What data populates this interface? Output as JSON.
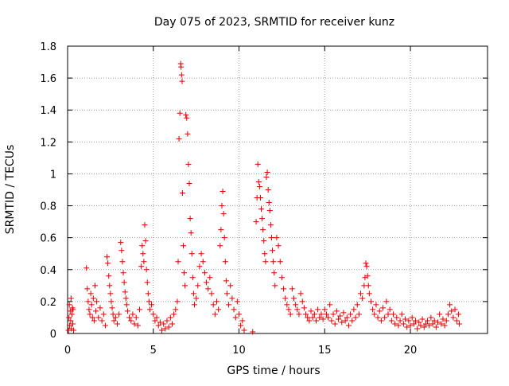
{
  "chart_data": {
    "type": "scatter",
    "title": "Day 075 of 2023, SRMTID for receiver kunz",
    "xlabel": "GPS time / hours",
    "ylabel": "SRMTID / TECUs",
    "xlim": [
      0,
      24.5
    ],
    "ylim": [
      0,
      1.8
    ],
    "xticks": [
      0,
      5,
      10,
      15,
      20
    ],
    "yticks": [
      0,
      0.2,
      0.4,
      0.6,
      0.8,
      1,
      1.2,
      1.4,
      1.6,
      1.8
    ],
    "xtick_labels": [
      "0",
      "5",
      "10",
      "15",
      "20"
    ],
    "ytick_labels": [
      "0",
      "0.2",
      "0.4",
      "0.6",
      "0.8",
      "1",
      "1.2",
      "1.4",
      "1.6",
      "1.8"
    ],
    "grid": true,
    "marker": "+",
    "color": "#e00000",
    "series": [
      {
        "name": "SRMTID",
        "points": [
          [
            0.05,
            0.02
          ],
          [
            0.08,
            0.1
          ],
          [
            0.1,
            0.18
          ],
          [
            0.12,
            0.05
          ],
          [
            0.15,
            0.14
          ],
          [
            0.18,
            0.08
          ],
          [
            0.2,
            0.22
          ],
          [
            0.22,
            0.03
          ],
          [
            0.25,
            0.12
          ],
          [
            0.28,
            0.16
          ],
          [
            0.3,
            0.06
          ],
          [
            0.32,
            0.15
          ],
          [
            0.35,
            0.02
          ],
          [
            1.1,
            0.41
          ],
          [
            1.15,
            0.28
          ],
          [
            1.2,
            0.2
          ],
          [
            1.25,
            0.15
          ],
          [
            1.3,
            0.12
          ],
          [
            1.35,
            0.25
          ],
          [
            1.4,
            0.18
          ],
          [
            1.45,
            0.1
          ],
          [
            1.5,
            0.22
          ],
          [
            1.55,
            0.08
          ],
          [
            1.6,
            0.3
          ],
          [
            1.65,
            0.14
          ],
          [
            1.7,
            0.2
          ],
          [
            1.8,
            0.1
          ],
          [
            1.9,
            0.16
          ],
          [
            2.0,
            0.08
          ],
          [
            2.1,
            0.12
          ],
          [
            2.2,
            0.05
          ],
          [
            2.3,
            0.48
          ],
          [
            2.35,
            0.44
          ],
          [
            2.4,
            0.36
          ],
          [
            2.45,
            0.3
          ],
          [
            2.5,
            0.25
          ],
          [
            2.55,
            0.2
          ],
          [
            2.6,
            0.16
          ],
          [
            2.65,
            0.12
          ],
          [
            2.7,
            0.08
          ],
          [
            2.8,
            0.1
          ],
          [
            2.9,
            0.06
          ],
          [
            3.0,
            0.12
          ],
          [
            3.1,
            0.57
          ],
          [
            3.15,
            0.52
          ],
          [
            3.2,
            0.45
          ],
          [
            3.25,
            0.38
          ],
          [
            3.3,
            0.32
          ],
          [
            3.35,
            0.26
          ],
          [
            3.4,
            0.22
          ],
          [
            3.45,
            0.18
          ],
          [
            3.5,
            0.14
          ],
          [
            3.6,
            0.1
          ],
          [
            3.7,
            0.08
          ],
          [
            3.8,
            0.12
          ],
          [
            3.9,
            0.06
          ],
          [
            4.0,
            0.1
          ],
          [
            4.1,
            0.05
          ],
          [
            4.2,
            0.15
          ],
          [
            4.3,
            0.42
          ],
          [
            4.35,
            0.55
          ],
          [
            4.4,
            0.5
          ],
          [
            4.45,
            0.45
          ],
          [
            4.5,
            0.68
          ],
          [
            4.55,
            0.58
          ],
          [
            4.6,
            0.4
          ],
          [
            4.65,
            0.32
          ],
          [
            4.7,
            0.25
          ],
          [
            4.75,
            0.2
          ],
          [
            4.8,
            0.15
          ],
          [
            4.9,
            0.18
          ],
          [
            5.0,
            0.12
          ],
          [
            5.1,
            0.08
          ],
          [
            5.2,
            0.1
          ],
          [
            5.3,
            0.05
          ],
          [
            5.4,
            0.07
          ],
          [
            5.5,
            0.02
          ],
          [
            5.6,
            0.06
          ],
          [
            5.7,
            0.03
          ],
          [
            5.8,
            0.08
          ],
          [
            5.9,
            0.04
          ],
          [
            6.0,
            0.1
          ],
          [
            6.1,
            0.06
          ],
          [
            6.2,
            0.12
          ],
          [
            6.3,
            0.15
          ],
          [
            6.4,
            0.2
          ],
          [
            6.45,
            0.45
          ],
          [
            6.5,
            1.22
          ],
          [
            6.55,
            1.38
          ],
          [
            6.6,
            1.69
          ],
          [
            6.62,
            1.67
          ],
          [
            6.65,
            1.62
          ],
          [
            6.68,
            1.58
          ],
          [
            6.7,
            0.88
          ],
          [
            6.75,
            0.55
          ],
          [
            6.8,
            0.38
          ],
          [
            6.85,
            0.3
          ],
          [
            6.9,
            1.37
          ],
          [
            6.95,
            1.35
          ],
          [
            7.0,
            1.25
          ],
          [
            7.05,
            1.06
          ],
          [
            7.1,
            0.94
          ],
          [
            7.15,
            0.72
          ],
          [
            7.2,
            0.63
          ],
          [
            7.25,
            0.5
          ],
          [
            7.3,
            0.35
          ],
          [
            7.35,
            0.25
          ],
          [
            7.4,
            0.18
          ],
          [
            7.5,
            0.22
          ],
          [
            7.6,
            0.3
          ],
          [
            7.7,
            0.42
          ],
          [
            7.8,
            0.5
          ],
          [
            7.9,
            0.45
          ],
          [
            8.0,
            0.38
          ],
          [
            8.1,
            0.32
          ],
          [
            8.2,
            0.28
          ],
          [
            8.3,
            0.35
          ],
          [
            8.4,
            0.25
          ],
          [
            8.5,
            0.18
          ],
          [
            8.6,
            0.12
          ],
          [
            8.7,
            0.2
          ],
          [
            8.8,
            0.15
          ],
          [
            8.9,
            0.55
          ],
          [
            8.95,
            0.65
          ],
          [
            9.0,
            0.8
          ],
          [
            9.05,
            0.89
          ],
          [
            9.1,
            0.75
          ],
          [
            9.15,
            0.6
          ],
          [
            9.2,
            0.45
          ],
          [
            9.25,
            0.33
          ],
          [
            9.3,
            0.25
          ],
          [
            9.4,
            0.18
          ],
          [
            9.5,
            0.3
          ],
          [
            9.6,
            0.22
          ],
          [
            9.7,
            0.15
          ],
          [
            9.8,
            0.1
          ],
          [
            9.9,
            0.2
          ],
          [
            10.0,
            0.12
          ],
          [
            10.1,
            0.05
          ],
          [
            10.2,
            0.08
          ],
          [
            10.3,
            0.02
          ],
          [
            10.8,
            0.01
          ],
          [
            11.0,
            0.7
          ],
          [
            11.05,
            0.85
          ],
          [
            11.1,
            1.06
          ],
          [
            11.15,
            0.95
          ],
          [
            11.2,
            0.92
          ],
          [
            11.25,
            0.85
          ],
          [
            11.3,
            0.78
          ],
          [
            11.35,
            0.72
          ],
          [
            11.4,
            0.65
          ],
          [
            11.45,
            0.58
          ],
          [
            11.5,
            0.5
          ],
          [
            11.55,
            0.45
          ],
          [
            11.6,
            0.98
          ],
          [
            11.65,
            1.01
          ],
          [
            11.7,
            0.9
          ],
          [
            11.75,
            0.82
          ],
          [
            11.8,
            0.77
          ],
          [
            11.85,
            0.68
          ],
          [
            11.9,
            0.6
          ],
          [
            11.95,
            0.52
          ],
          [
            12.0,
            0.45
          ],
          [
            12.05,
            0.38
          ],
          [
            12.1,
            0.3
          ],
          [
            12.2,
            0.6
          ],
          [
            12.3,
            0.55
          ],
          [
            12.4,
            0.45
          ],
          [
            12.5,
            0.35
          ],
          [
            12.6,
            0.28
          ],
          [
            12.7,
            0.22
          ],
          [
            12.8,
            0.18
          ],
          [
            12.9,
            0.15
          ],
          [
            13.0,
            0.12
          ],
          [
            13.1,
            0.28
          ],
          [
            13.2,
            0.22
          ],
          [
            13.3,
            0.18
          ],
          [
            13.4,
            0.15
          ],
          [
            13.5,
            0.12
          ],
          [
            13.6,
            0.25
          ],
          [
            13.7,
            0.2
          ],
          [
            13.8,
            0.16
          ],
          [
            13.9,
            0.12
          ],
          [
            14.0,
            0.1
          ],
          [
            14.1,
            0.08
          ],
          [
            14.2,
            0.14
          ],
          [
            14.3,
            0.1
          ],
          [
            14.4,
            0.12
          ],
          [
            14.5,
            0.08
          ],
          [
            14.6,
            0.15
          ],
          [
            14.7,
            0.1
          ],
          [
            14.8,
            0.12
          ],
          [
            14.9,
            0.09
          ],
          [
            15.0,
            0.15
          ],
          [
            15.1,
            0.12
          ],
          [
            15.2,
            0.1
          ],
          [
            15.3,
            0.18
          ],
          [
            15.4,
            0.08
          ],
          [
            15.5,
            0.12
          ],
          [
            15.6,
            0.06
          ],
          [
            15.7,
            0.14
          ],
          [
            15.8,
            0.09
          ],
          [
            15.9,
            0.11
          ],
          [
            16.0,
            0.07
          ],
          [
            16.1,
            0.13
          ],
          [
            16.2,
            0.08
          ],
          [
            16.3,
            0.1
          ],
          [
            16.4,
            0.05
          ],
          [
            16.5,
            0.12
          ],
          [
            16.6,
            0.08
          ],
          [
            16.7,
            0.15
          ],
          [
            16.8,
            0.1
          ],
          [
            16.9,
            0.18
          ],
          [
            17.0,
            0.12
          ],
          [
            17.1,
            0.25
          ],
          [
            17.2,
            0.22
          ],
          [
            17.3,
            0.3
          ],
          [
            17.35,
            0.35
          ],
          [
            17.4,
            0.44
          ],
          [
            17.45,
            0.42
          ],
          [
            17.5,
            0.36
          ],
          [
            17.55,
            0.3
          ],
          [
            17.6,
            0.25
          ],
          [
            17.7,
            0.2
          ],
          [
            17.8,
            0.15
          ],
          [
            17.9,
            0.12
          ],
          [
            18.0,
            0.18
          ],
          [
            18.1,
            0.1
          ],
          [
            18.2,
            0.14
          ],
          [
            18.3,
            0.08
          ],
          [
            18.4,
            0.16
          ],
          [
            18.5,
            0.1
          ],
          [
            18.6,
            0.2
          ],
          [
            18.7,
            0.12
          ],
          [
            18.8,
            0.15
          ],
          [
            18.9,
            0.08
          ],
          [
            19.0,
            0.12
          ],
          [
            19.1,
            0.06
          ],
          [
            19.2,
            0.1
          ],
          [
            19.3,
            0.05
          ],
          [
            19.4,
            0.08
          ],
          [
            19.5,
            0.12
          ],
          [
            19.6,
            0.06
          ],
          [
            19.7,
            0.09
          ],
          [
            19.8,
            0.04
          ],
          [
            19.9,
            0.08
          ],
          [
            20.0,
            0.05
          ],
          [
            20.1,
            0.1
          ],
          [
            20.2,
            0.06
          ],
          [
            20.3,
            0.08
          ],
          [
            20.4,
            0.03
          ],
          [
            20.5,
            0.07
          ],
          [
            20.6,
            0.05
          ],
          [
            20.7,
            0.09
          ],
          [
            20.8,
            0.04
          ],
          [
            20.9,
            0.06
          ],
          [
            21.0,
            0.08
          ],
          [
            21.1,
            0.05
          ],
          [
            21.2,
            0.1
          ],
          [
            21.3,
            0.06
          ],
          [
            21.4,
            0.08
          ],
          [
            21.5,
            0.04
          ],
          [
            21.6,
            0.07
          ],
          [
            21.7,
            0.12
          ],
          [
            21.8,
            0.06
          ],
          [
            21.9,
            0.09
          ],
          [
            22.0,
            0.05
          ],
          [
            22.1,
            0.08
          ],
          [
            22.2,
            0.12
          ],
          [
            22.3,
            0.18
          ],
          [
            22.4,
            0.14
          ],
          [
            22.5,
            0.1
          ],
          [
            22.6,
            0.15
          ],
          [
            22.7,
            0.08
          ],
          [
            22.8,
            0.12
          ],
          [
            22.85,
            0.06
          ]
        ]
      }
    ]
  }
}
